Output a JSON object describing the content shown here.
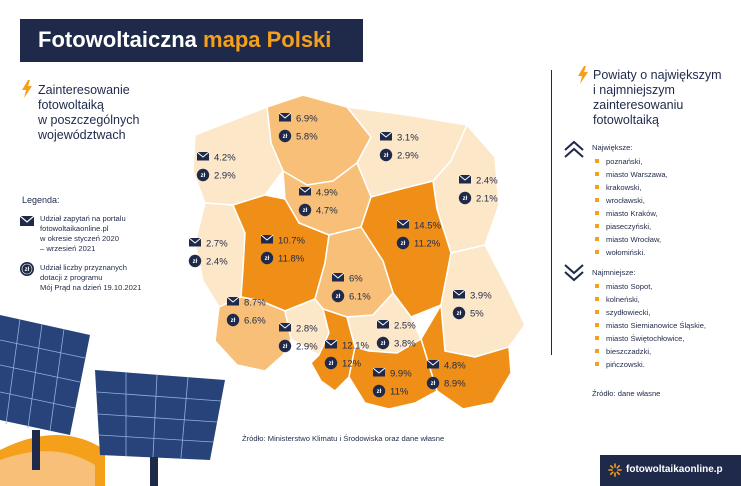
{
  "title": {
    "part1": "Fotowoltaiczna",
    "part2": "mapa Polski"
  },
  "left_heading": [
    "Zainteresowanie",
    "fotowoltaiką",
    "w poszczególnych",
    "województwach"
  ],
  "legend": {
    "title": "Legenda:",
    "item1": [
      "Udział zapytań na portalu",
      "fotowoltaikaonline.pl",
      "w okresie styczeń 2020",
      "– wrzesień 2021"
    ],
    "item2": [
      "Udział liczby przyznanych",
      "dotacji z programu",
      "Mój Prąd na dzień 19.10.2021"
    ]
  },
  "right_heading": [
    "Powiaty o największym",
    "i najmniejszym",
    "zainteresowaniu",
    "fotowoltaiką"
  ],
  "largest": {
    "title": "Największe:",
    "items": [
      "poznański,",
      "miasto Warszawa,",
      "krakowski,",
      "wrocławski,",
      "miasto Kraków,",
      "piaseczyński,",
      "miasto Wrocław,",
      "wołomiński."
    ]
  },
  "smallest": {
    "title": "Najmniejsze:",
    "items": [
      "miasto Sopot,",
      "kolneński,",
      "szydłowiecki,",
      "miasto Siemianowice Śląskie,",
      "miasto Świętochłowice,",
      "bieszczadzki,",
      "pińczowski."
    ]
  },
  "source_right": "Źródło: dane własne",
  "source_bottom": "Źródło: Ministerstwo Klimatu i Środowiska oraz dane własne",
  "brand": "fotowoltaikaonline.p",
  "icons": {
    "envelope": "envelope-icon",
    "coin": "zl-coin-icon",
    "lightning": "lightning-icon",
    "up": "double-chevron-up-icon",
    "down": "double-chevron-down-icon"
  },
  "colors": {
    "navy": "#1f2a4a",
    "orange": "#f5a01a",
    "dark_region": "#ef8f17",
    "medium_region": "#f7bf77",
    "light_region": "#fde7c9"
  },
  "regions": [
    {
      "name": "pomorskie",
      "inquiries": "6.9%",
      "subsidies": "5.8%"
    },
    {
      "name": "warmińsko-mazurskie",
      "inquiries": "3.1%",
      "subsidies": "2.9%"
    },
    {
      "name": "zachodniopomorskie",
      "inquiries": "4.2%",
      "subsidies": "2.9%"
    },
    {
      "name": "podlaskie",
      "inquiries": "2.4%",
      "subsidies": "2.1%"
    },
    {
      "name": "kujawsko-pomorskie",
      "inquiries": "4.9%",
      "subsidies": "4.7%"
    },
    {
      "name": "mazowieckie",
      "inquiries": "14.5%",
      "subsidies": "11.2%"
    },
    {
      "name": "lubuskie",
      "inquiries": "2.7%",
      "subsidies": "2.4%"
    },
    {
      "name": "wielkopolskie",
      "inquiries": "10.7%",
      "subsidies": "11.8%"
    },
    {
      "name": "łódzkie",
      "inquiries": "6%",
      "subsidies": "6.1%"
    },
    {
      "name": "lubelskie",
      "inquiries": "3.9%",
      "subsidies": "5%"
    },
    {
      "name": "dolnośląskie",
      "inquiries": "8.7%",
      "subsidies": "6.6%"
    },
    {
      "name": "opolskie",
      "inquiries": "2.8%",
      "subsidies": "2.9%"
    },
    {
      "name": "śląskie",
      "inquiries": "12.1%",
      "subsidies": "12%"
    },
    {
      "name": "świętokrzyskie",
      "inquiries": "2.5%",
      "subsidies": "3.8%"
    },
    {
      "name": "podkarpackie",
      "inquiries": "4.8%",
      "subsidies": "8.9%"
    },
    {
      "name": "małopolskie",
      "inquiries": "9.9%",
      "subsidies": "11%"
    }
  ]
}
